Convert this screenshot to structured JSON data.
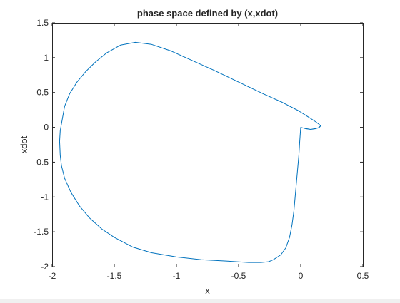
{
  "chart_data": {
    "type": "line",
    "title": "phase space defined by (x,xdot)",
    "xlabel": "x",
    "ylabel": "xdot",
    "xlim": [
      -2,
      0.5
    ],
    "ylim": [
      -2,
      1.5
    ],
    "xticks": [
      -2,
      -1.5,
      -1,
      -0.5,
      0,
      0.5
    ],
    "yticks": [
      -2,
      -1.5,
      -1,
      -0.5,
      0,
      0.5,
      1,
      1.5
    ],
    "xtick_labels": [
      "-2",
      "-1.5",
      "-1",
      "-0.5",
      "0",
      "0.5"
    ],
    "ytick_labels": [
      "-2",
      "-1.5",
      "-1",
      "-0.5",
      "0",
      "0.5",
      "1",
      "1.5"
    ],
    "grid": false,
    "colors": {
      "line": "#0072BD",
      "axes": "#262626"
    },
    "series": [
      {
        "x": [
          0,
          0.04,
          0.08,
          0.12,
          0.15,
          0.16,
          0.15,
          0.12,
          0.06,
          -0.02,
          -0.15,
          -0.3,
          -0.5,
          -0.7,
          -0.9,
          -1.05,
          -1.2,
          -1.33,
          -1.45,
          -1.56,
          -1.65,
          -1.73,
          -1.8,
          -1.86,
          -1.9,
          -1.92,
          -1.935,
          -1.94,
          -1.935,
          -1.925,
          -1.9,
          -1.85,
          -1.78,
          -1.7,
          -1.6,
          -1.5,
          -1.35,
          -1.2,
          -1.0,
          -0.8,
          -0.6,
          -0.42,
          -0.32,
          -0.26,
          -0.22,
          -0.16,
          -0.12,
          -0.09,
          -0.07,
          -0.055,
          -0.045,
          -0.035,
          -0.025,
          -0.015,
          -0.008,
          0.0,
          0.02,
          0.05,
          0.08,
          0.11,
          0.14,
          0.16
        ],
        "y": [
          0.0,
          -0.02,
          -0.03,
          -0.02,
          0.0,
          0.02,
          0.04,
          0.08,
          0.15,
          0.24,
          0.36,
          0.48,
          0.65,
          0.82,
          0.98,
          1.1,
          1.19,
          1.22,
          1.18,
          1.07,
          0.94,
          0.8,
          0.65,
          0.48,
          0.3,
          0.1,
          -0.05,
          -0.2,
          -0.4,
          -0.55,
          -0.73,
          -0.93,
          -1.13,
          -1.3,
          -1.46,
          -1.58,
          -1.72,
          -1.8,
          -1.86,
          -1.9,
          -1.92,
          -1.94,
          -1.94,
          -1.93,
          -1.9,
          -1.83,
          -1.73,
          -1.58,
          -1.4,
          -1.2,
          -1.0,
          -0.8,
          -0.6,
          -0.4,
          -0.2,
          0.0,
          -0.01,
          -0.02,
          -0.03,
          -0.02,
          -0.01,
          0.02
        ]
      }
    ]
  }
}
